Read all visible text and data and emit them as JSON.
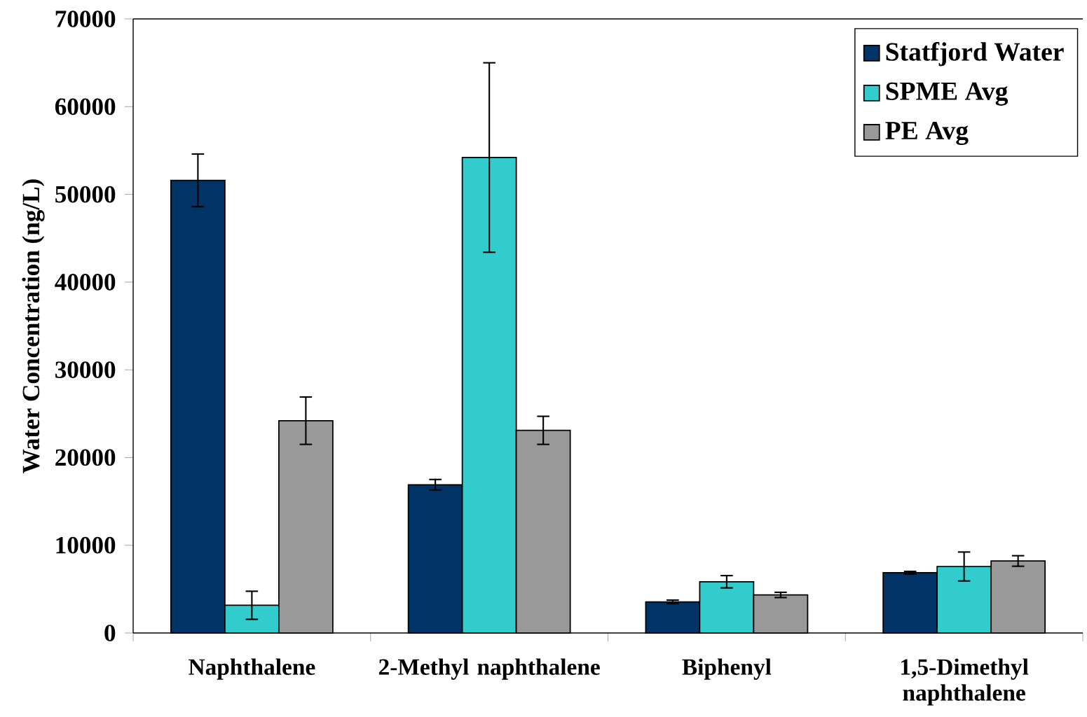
{
  "chart_data": {
    "type": "bar",
    "ylabel": "Water Concentration (ng/L)",
    "categories": [
      "Naphthalene",
      "2-Methyl naphthalene",
      "Biphenyl",
      "1,5-Dimethyl naphthalene"
    ],
    "series": [
      {
        "name": "Statfjord Water",
        "color": "#003366",
        "values": [
          51600,
          16900,
          3550,
          6870
        ],
        "errors": [
          3000,
          600,
          200,
          150
        ]
      },
      {
        "name": "SPME Avg",
        "color": "#33cccc",
        "values": [
          3160,
          54200,
          5840,
          7580
        ],
        "errors": [
          1600,
          10800,
          700,
          1650
        ]
      },
      {
        "name": "PE Avg",
        "color": "#999999",
        "values": [
          24200,
          23100,
          4340,
          8210
        ],
        "errors": [
          2700,
          1600,
          300,
          600
        ]
      }
    ],
    "ylim": [
      0,
      70000
    ],
    "yticks": [
      0,
      10000,
      20000,
      30000,
      40000,
      50000,
      60000,
      70000
    ],
    "legend": "top right",
    "grid": false
  }
}
